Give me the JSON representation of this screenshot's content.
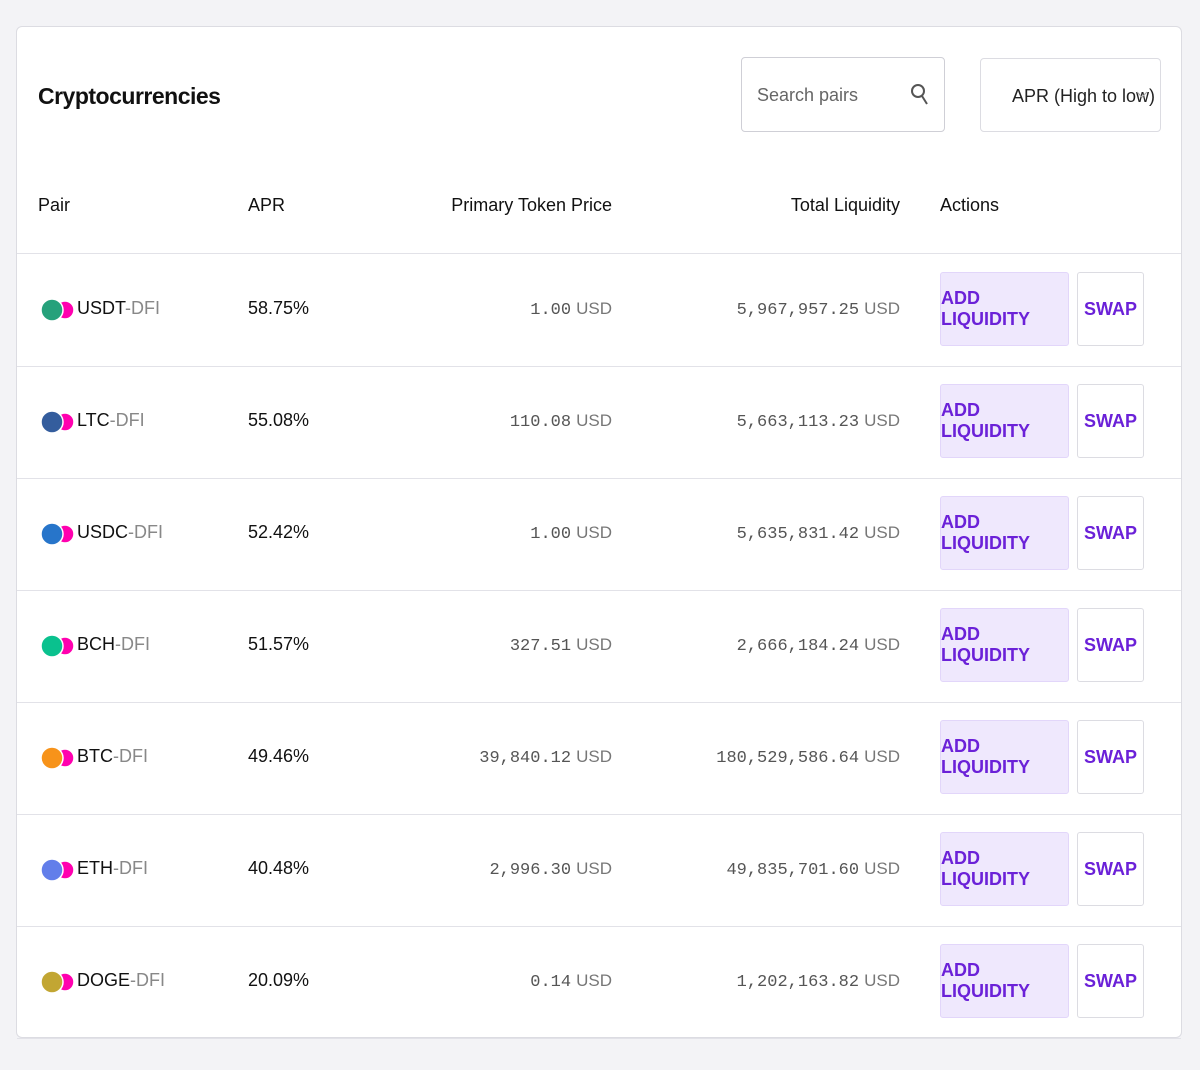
{
  "header": {
    "title": "Cryptocurrencies",
    "search_placeholder": "Search pairs",
    "sort": "APR (High to low)"
  },
  "table": {
    "columns": [
      "Pair",
      "APR",
      "Primary Token Price",
      "Total Liquidity",
      "Actions"
    ],
    "rows": [
      {
        "base": "USDT",
        "quote": "-DFI",
        "apr": "58.75%",
        "price": "1.00",
        "price_unit": "USD",
        "liquidity": "5,967,957.25",
        "liquidity_unit": "USD",
        "actions": [
          "ADD LIQUIDITY",
          "SWAP"
        ]
      },
      {
        "base": "LTC",
        "quote": "-DFI",
        "apr": "55.08%",
        "price": "110.08",
        "price_unit": "USD",
        "liquidity": "5,663,113.23",
        "liquidity_unit": "USD",
        "actions": [
          "ADD LIQUIDITY",
          "SWAP"
        ]
      },
      {
        "base": "USDC",
        "quote": "-DFI",
        "apr": "52.42%",
        "price": "1.00",
        "price_unit": "USD",
        "liquidity": "5,635,831.42",
        "liquidity_unit": "USD",
        "actions": [
          "ADD LIQUIDITY",
          "SWAP"
        ]
      },
      {
        "base": "BCH",
        "quote": "-DFI",
        "apr": "51.57%",
        "price": "327.51",
        "price_unit": "USD",
        "liquidity": "2,666,184.24",
        "liquidity_unit": "USD",
        "actions": [
          "ADD LIQUIDITY",
          "SWAP"
        ]
      },
      {
        "base": "BTC",
        "quote": "-DFI",
        "apr": "49.46%",
        "price": "39,840.12",
        "price_unit": "USD",
        "liquidity": "180,529,586.64",
        "liquidity_unit": "USD",
        "actions": [
          "ADD LIQUIDITY",
          "SWAP"
        ]
      },
      {
        "base": "ETH",
        "quote": "-DFI",
        "apr": "40.48%",
        "price": "2,996.30",
        "price_unit": "USD",
        "liquidity": "49,835,701.60",
        "liquidity_unit": "USD",
        "actions": [
          "ADD LIQUIDITY",
          "SWAP"
        ]
      },
      {
        "base": "DOGE",
        "quote": "-DFI",
        "apr": "20.09%",
        "price": "0.14",
        "price_unit": "USD",
        "liquidity": "1,202,163.82",
        "liquidity_unit": "USD",
        "actions": [
          "ADD LIQUIDITY",
          "SWAP"
        ]
      }
    ]
  }
}
